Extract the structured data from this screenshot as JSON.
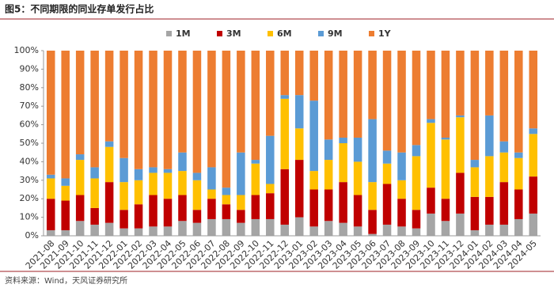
{
  "chart_data": {
    "type": "stacked_bar",
    "title": "图5：不同期限的同业存单发行占比",
    "source": "资料来源：Wind，天风证券研究所",
    "categories": [
      "2021-08",
      "2021-09",
      "2021-10",
      "2021-11",
      "2021-12",
      "2022-01",
      "2022-02",
      "2022-03",
      "2022-04",
      "2022-05",
      "2022-06",
      "2022-07",
      "2022-08",
      "2022-09",
      "2022-10",
      "2022-11",
      "2022-12",
      "2023-01",
      "2023-02",
      "2023-03",
      "2023-04",
      "2023-05",
      "2023-06",
      "2023-07",
      "2023-08",
      "2023-09",
      "2023-10",
      "2023-11",
      "2023-12",
      "2024-01",
      "2024-02",
      "2024-03",
      "2024-04",
      "2024-05"
    ],
    "series": [
      {
        "name": "1M",
        "color": "#a5a5a5",
        "values": [
          3,
          3,
          8,
          6,
          7,
          4,
          4,
          5,
          5,
          8,
          7,
          9,
          9,
          7,
          9,
          9,
          6,
          10,
          5,
          8,
          7,
          5,
          1,
          6,
          5,
          4,
          12,
          8,
          12,
          3,
          6,
          6,
          9,
          12
        ]
      },
      {
        "name": "3M",
        "color": "#c00000",
        "values": [
          17,
          16,
          14,
          9,
          22,
          10,
          13,
          17,
          15,
          14,
          7,
          11,
          8,
          7,
          13,
          14,
          30,
          31,
          20,
          17,
          22,
          17,
          13,
          22,
          15,
          10,
          14,
          12,
          22,
          18,
          15,
          23,
          16,
          20
        ]
      },
      {
        "name": "6M",
        "color": "#ffc000",
        "values": [
          11,
          8,
          19,
          16,
          19,
          15,
          13,
          12,
          14,
          13,
          16,
          5,
          5,
          8,
          17,
          5,
          38,
          17,
          10,
          16,
          21,
          18,
          15,
          11,
          10,
          29,
          35,
          32,
          30,
          16,
          22,
          16,
          17,
          23
        ]
      },
      {
        "name": "9M",
        "color": "#5b9bd5",
        "values": [
          2,
          4,
          3,
          6,
          3,
          13,
          6,
          3,
          2,
          10,
          4,
          12,
          4,
          23,
          2,
          26,
          2,
          18,
          38,
          11,
          3,
          13,
          34,
          7,
          15,
          6,
          2,
          1,
          1,
          4,
          22,
          6,
          3,
          3
        ]
      },
      {
        "name": "1Y",
        "color": "#ed7d31",
        "values": [
          67,
          69,
          56,
          63,
          49,
          58,
          64,
          63,
          64,
          55,
          66,
          63,
          74,
          55,
          59,
          46,
          24,
          24,
          27,
          48,
          47,
          47,
          37,
          54,
          55,
          51,
          37,
          47,
          35,
          59,
          35,
          49,
          55,
          42
        ]
      }
    ],
    "ylim": [
      0,
      100
    ],
    "yticks": [
      {
        "value": 0,
        "label": "0%"
      },
      {
        "value": 10,
        "label": "10%"
      },
      {
        "value": 20,
        "label": "20%"
      },
      {
        "value": 30,
        "label": "30%"
      },
      {
        "value": 40,
        "label": "40%"
      },
      {
        "value": 50,
        "label": "50%"
      },
      {
        "value": 60,
        "label": "60%"
      },
      {
        "value": 70,
        "label": "70%"
      },
      {
        "value": 80,
        "label": "80%"
      },
      {
        "value": 90,
        "label": "90%"
      },
      {
        "value": 100,
        "label": "100%"
      }
    ],
    "grid": false
  }
}
